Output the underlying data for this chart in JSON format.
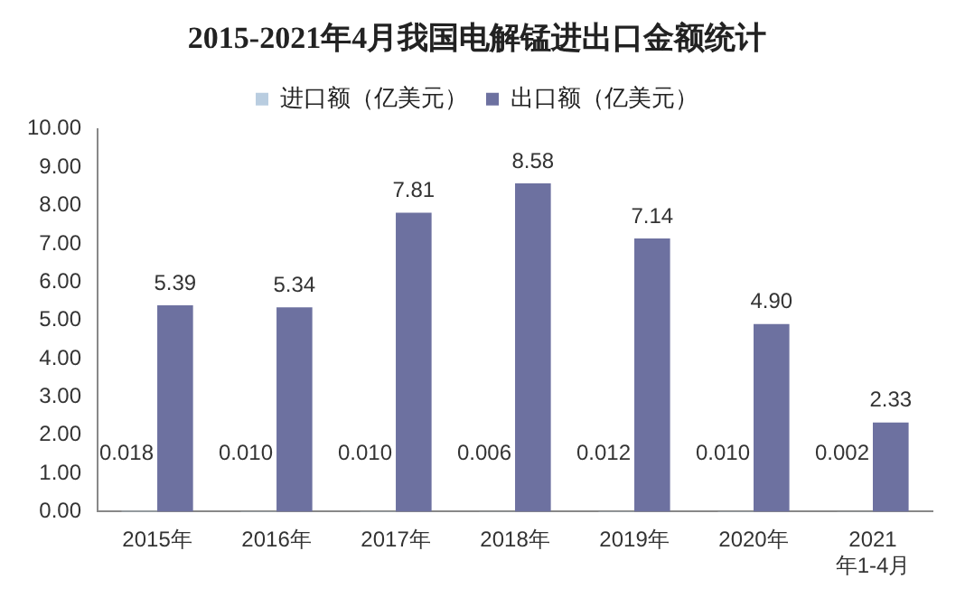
{
  "chart_data": {
    "type": "bar",
    "title": "2015-2021年4月我国电解锰进出口金额统计",
    "categories": [
      "2015年",
      "2016年",
      "2017年",
      "2018年",
      "2019年",
      "2020年",
      "2021年1-4月"
    ],
    "series": [
      {
        "name": "进口额（亿美元）",
        "color": "#b9cde0",
        "values": [
          0.018,
          0.01,
          0.01,
          0.006,
          0.012,
          0.01,
          0.002
        ],
        "value_labels": [
          "0.018",
          "0.010",
          "0.010",
          "0.006",
          "0.012",
          "0.010",
          "0.002"
        ]
      },
      {
        "name": "出口额（亿美元）",
        "color": "#6d71a0",
        "values": [
          5.39,
          5.34,
          7.81,
          8.58,
          7.14,
          4.9,
          2.33
        ],
        "value_labels": [
          "5.39",
          "5.34",
          "7.81",
          "8.58",
          "7.14",
          "4.90",
          "2.33"
        ]
      }
    ],
    "ylim": [
      0,
      10
    ],
    "yticks": [
      {
        "value": 0,
        "label": "0.00"
      },
      {
        "value": 1,
        "label": "1.00"
      },
      {
        "value": 2,
        "label": "2.00"
      },
      {
        "value": 3,
        "label": "3.00"
      },
      {
        "value": 4,
        "label": "4.00"
      },
      {
        "value": 5,
        "label": "5.00"
      },
      {
        "value": 6,
        "label": "6.00"
      },
      {
        "value": 7,
        "label": "7.00"
      },
      {
        "value": 8,
        "label": "8.00"
      },
      {
        "value": 9,
        "label": "9.00"
      },
      {
        "value": 10,
        "label": "10.00"
      }
    ],
    "grid": false,
    "legend": "top"
  }
}
